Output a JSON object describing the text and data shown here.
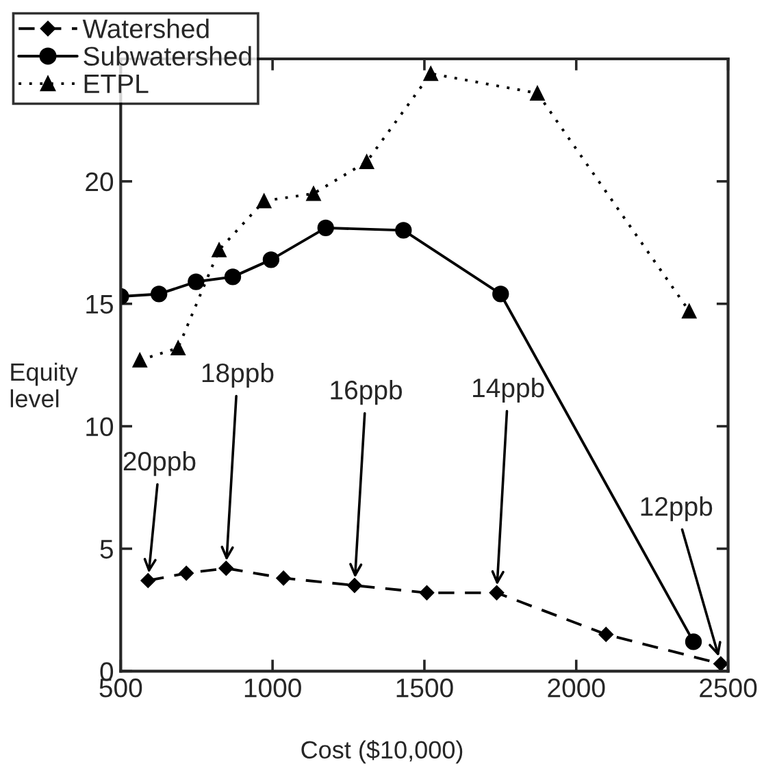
{
  "chart_data": {
    "type": "line",
    "xlabel": "Cost ($10,000)",
    "ylabel": "Equity level",
    "xlim": [
      500,
      2500
    ],
    "ylim": [
      0,
      25
    ],
    "xticks": [
      500,
      1000,
      1500,
      2000,
      2500
    ],
    "yticks": [
      0,
      5,
      10,
      15,
      20
    ],
    "grid": false,
    "legend": "top left",
    "series": [
      {
        "name": "Watershed",
        "color": "#000000",
        "marker": "diamond",
        "line_style": "dashed",
        "x": [
          590,
          716,
          847,
          1036,
          1270,
          1508,
          1738,
          2098,
          2476
        ],
        "values": [
          3.7,
          4.0,
          4.2,
          3.8,
          3.5,
          3.2,
          3.2,
          1.5,
          0.3
        ]
      },
      {
        "name": "Subwatershed",
        "color": "#000000",
        "marker": "circle",
        "line_style": "solid",
        "x": [
          500,
          626,
          748,
          869,
          995,
          1175,
          1431,
          1751,
          2386
        ],
        "values": [
          15.3,
          15.4,
          15.9,
          16.1,
          16.8,
          18.1,
          18.0,
          15.4,
          1.2
        ]
      },
      {
        "name": "ETPL",
        "color": "#000000",
        "marker": "triangle",
        "line_style": "dotted",
        "x": [
          563,
          689,
          824,
          972,
          1135,
          1310,
          1521,
          1872,
          2372
        ],
        "values": [
          12.7,
          13.2,
          17.2,
          19.2,
          19.5,
          20.8,
          24.4,
          23.6,
          14.7
        ]
      }
    ],
    "annotations": [
      {
        "text": "20ppb",
        "x": 590,
        "y": 3.7
      },
      {
        "text": "18ppb",
        "x": 847,
        "y": 4.2
      },
      {
        "text": "16ppb",
        "x": 1270,
        "y": 3.5
      },
      {
        "text": "14ppb",
        "x": 1738,
        "y": 3.2
      },
      {
        "text": "12ppb",
        "x": 2476,
        "y": 0.3
      }
    ]
  }
}
